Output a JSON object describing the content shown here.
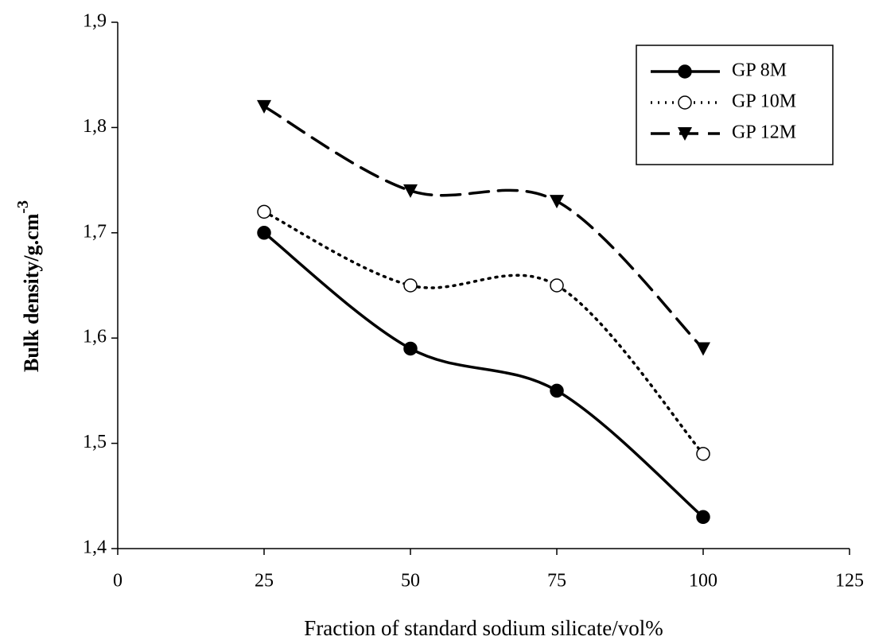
{
  "chart_data": {
    "type": "line",
    "x_label": "Fraction of standard sodium silicate/vol%",
    "y_label": "Bulk density/g.cm",
    "y_label_sup": "-3",
    "x": [
      25,
      50,
      75,
      100
    ],
    "series": [
      {
        "name": "GP 8M",
        "color": "#000000",
        "style": "solid",
        "marker": "circle",
        "values": [
          1.7,
          1.59,
          1.55,
          1.43
        ]
      },
      {
        "name": "GP 10M",
        "color": "#000000",
        "style": "dotted",
        "marker": "open-circle",
        "values": [
          1.72,
          1.65,
          1.65,
          1.49
        ]
      },
      {
        "name": "GP 12M",
        "color": "#000000",
        "style": "dashed",
        "marker": "triangle-down",
        "values": [
          1.82,
          1.74,
          1.73,
          1.59
        ]
      }
    ],
    "xlim": [
      0,
      125
    ],
    "xticks": [
      0,
      25,
      50,
      75,
      100,
      125
    ],
    "ylim": [
      1.4,
      1.9
    ],
    "yticks": [
      {
        "value": 1.4,
        "label": "1,4"
      },
      {
        "value": 1.5,
        "label": "1,5"
      },
      {
        "value": 1.6,
        "label": "1,6"
      },
      {
        "value": 1.7,
        "label": "1,7"
      },
      {
        "value": 1.8,
        "label": "1,8"
      },
      {
        "value": 1.9,
        "label": "1,9"
      }
    ],
    "legend": "upper right"
  }
}
